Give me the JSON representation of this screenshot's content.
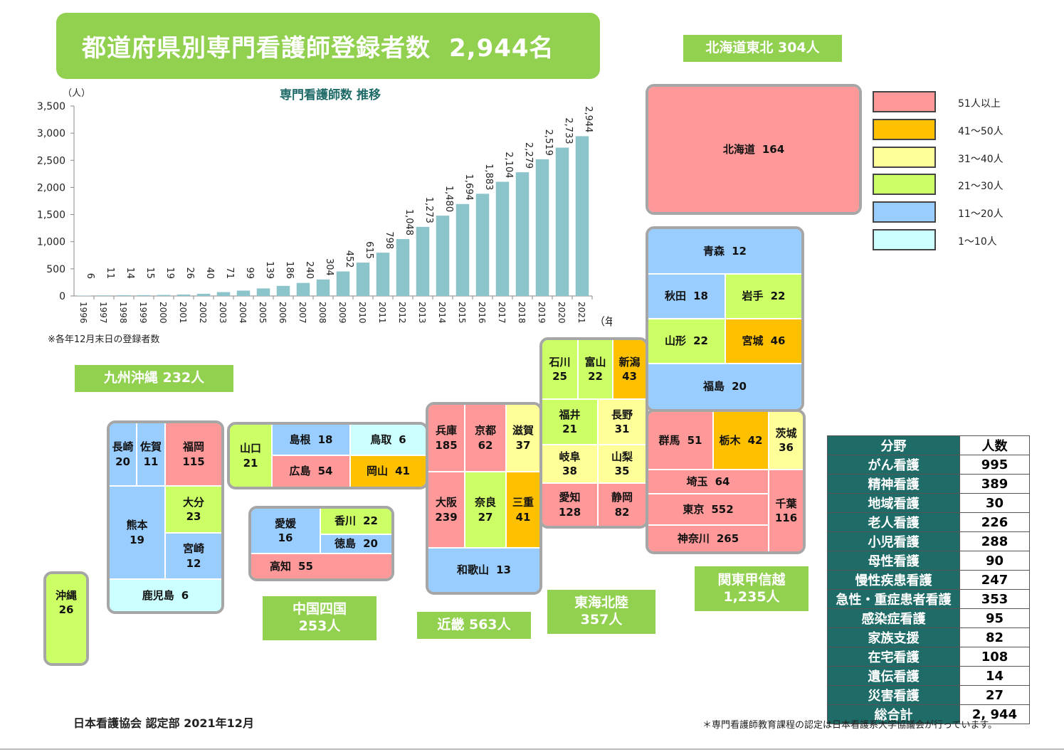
{
  "title": {
    "main": "都道府県別専門看護師登録者数",
    "total": "2,944名"
  },
  "chart_data": {
    "type": "bar",
    "title": "専門看護師数  推移",
    "y_unit": "（人）",
    "x_unit": "（年）",
    "ylim": [
      0,
      3500
    ],
    "yticks": [
      "0",
      "500",
      "1,000",
      "1,500",
      "2,000",
      "2,500",
      "3,000",
      "3,500"
    ],
    "bar_color": "#8cc4cc",
    "categories": [
      "1996",
      "1997",
      "1998",
      "1999",
      "2000",
      "2001",
      "2002",
      "2003",
      "2004",
      "2005",
      "2006",
      "2007",
      "2008",
      "2009",
      "2010",
      "2011",
      "2012",
      "2013",
      "2014",
      "2015",
      "2016",
      "2017",
      "2018",
      "2019",
      "2020",
      "2021"
    ],
    "values": [
      6,
      11,
      14,
      15,
      19,
      26,
      40,
      71,
      99,
      139,
      186,
      240,
      304,
      452,
      615,
      798,
      1048,
      1273,
      1480,
      1694,
      1883,
      2104,
      2279,
      2519,
      2733,
      2944
    ],
    "labels": [
      "6",
      "11",
      "14",
      "15",
      "19",
      "26",
      "40",
      "71",
      "99",
      "139",
      "186",
      "240",
      "304",
      "452",
      "615",
      "798",
      "1,048",
      "1,273",
      "1,480",
      "1,694",
      "1,883",
      "2,104",
      "2,279",
      "2,519",
      "2,733",
      "2,944"
    ]
  },
  "chart_note": "※各年12月末日の登録者数",
  "regions": {
    "hokkaido_tohoku": "北海道東北  304人",
    "kyushu": "九州沖縄    232人",
    "chugoku": {
      "name": "中国四国",
      "count": "253人"
    },
    "kinki": "近畿    563人",
    "tokai": {
      "name": "東海北陸",
      "count": "357人"
    },
    "kanto": {
      "name": "関東甲信越",
      "count": "1,235人"
    }
  },
  "prefectures": {
    "hokkaido": {
      "name": "北海道",
      "value": "164"
    },
    "aomori": {
      "name": "青森",
      "value": "12"
    },
    "akita": {
      "name": "秋田",
      "value": "18"
    },
    "iwate": {
      "name": "岩手",
      "value": "22"
    },
    "yamagata": {
      "name": "山形",
      "value": "22"
    },
    "miyagi": {
      "name": "宮城",
      "value": "46"
    },
    "fukushima": {
      "name": "福島",
      "value": "20"
    },
    "ishikawa": {
      "name": "石川",
      "value": "25"
    },
    "toyama": {
      "name": "富山",
      "value": "22"
    },
    "niigata": {
      "name": "新潟",
      "value": "43"
    },
    "fukui": {
      "name": "福井",
      "value": "21"
    },
    "nagano": {
      "name": "長野",
      "value": "31"
    },
    "gifu": {
      "name": "岐阜",
      "value": "38"
    },
    "yamanashi": {
      "name": "山梨",
      "value": "35"
    },
    "aichi": {
      "name": "愛知",
      "value": "128"
    },
    "shizuoka": {
      "name": "静岡",
      "value": "82"
    },
    "gunma": {
      "name": "群馬",
      "value": "51"
    },
    "tochigi": {
      "name": "栃木",
      "value": "42"
    },
    "ibaraki": {
      "name": "茨城",
      "value": "36"
    },
    "saitama": {
      "name": "埼玉",
      "value": "64"
    },
    "tokyo": {
      "name": "東京",
      "value": "552"
    },
    "kanagawa": {
      "name": "神奈川",
      "value": "265"
    },
    "chiba": {
      "name": "千葉",
      "value": "116"
    },
    "hyogo": {
      "name": "兵庫",
      "value": "185"
    },
    "kyoto": {
      "name": "京都",
      "value": "62"
    },
    "shiga": {
      "name": "滋賀",
      "value": "37"
    },
    "osaka": {
      "name": "大阪",
      "value": "239"
    },
    "nara": {
      "name": "奈良",
      "value": "27"
    },
    "mie": {
      "name": "三重",
      "value": "41"
    },
    "wakayama": {
      "name": "和歌山",
      "value": "13"
    },
    "yamaguchi": {
      "name": "山口",
      "value": "21"
    },
    "shimane": {
      "name": "島根",
      "value": "18"
    },
    "tottori": {
      "name": "鳥取",
      "value": "6"
    },
    "hiroshima": {
      "name": "広島",
      "value": "54"
    },
    "okayama": {
      "name": "岡山",
      "value": "41"
    },
    "ehime": {
      "name": "愛媛",
      "value": "16"
    },
    "kagawa": {
      "name": "香川",
      "value": "22"
    },
    "tokushima": {
      "name": "徳島",
      "value": "20"
    },
    "kochi": {
      "name": "高知",
      "value": "55"
    },
    "nagasaki": {
      "name": "長崎",
      "value": "20"
    },
    "saga": {
      "name": "佐賀",
      "value": "11"
    },
    "fukuoka": {
      "name": "福岡",
      "value": "115"
    },
    "kumamoto": {
      "name": "熊本",
      "value": "19"
    },
    "oita": {
      "name": "大分",
      "value": "23"
    },
    "miyazaki": {
      "name": "宮崎",
      "value": "12"
    },
    "kagoshima": {
      "name": "鹿児島",
      "value": "6"
    },
    "okinawa": {
      "name": "沖縄",
      "value": "26"
    }
  },
  "legend": [
    {
      "label": "51人以上",
      "color": "#ff9999"
    },
    {
      "label": "41～50人",
      "color": "#ffc000"
    },
    {
      "label": "31～40人",
      "color": "#ffff99"
    },
    {
      "label": "21～30人",
      "color": "#ccff66"
    },
    {
      "label": "11～20人",
      "color": "#99ccff"
    },
    {
      "label": "1～10人",
      "color": "#ccffff"
    }
  ],
  "field_table": {
    "headers": [
      "分野",
      "人数"
    ],
    "rows": [
      [
        "がん看護",
        "995"
      ],
      [
        "精神看護",
        "389"
      ],
      [
        "地域看護",
        "30"
      ],
      [
        "老人看護",
        "226"
      ],
      [
        "小児看護",
        "288"
      ],
      [
        "母性看護",
        "90"
      ],
      [
        "慢性疾患看護",
        "247"
      ],
      [
        "急性・重症患者看護",
        "353"
      ],
      [
        "感染症看護",
        "95"
      ],
      [
        "家族支援",
        "82"
      ],
      [
        "在宅看護",
        "108"
      ],
      [
        "遺伝看護",
        "14"
      ],
      [
        "災害看護",
        "27"
      ],
      [
        "総合計",
        "2, 944"
      ]
    ]
  },
  "footer": {
    "left": "日本看護協会  認定部  2021年12月",
    "right": "＊専門看護師教育課程の認定は日本看護系大学協議会が行っています。"
  }
}
